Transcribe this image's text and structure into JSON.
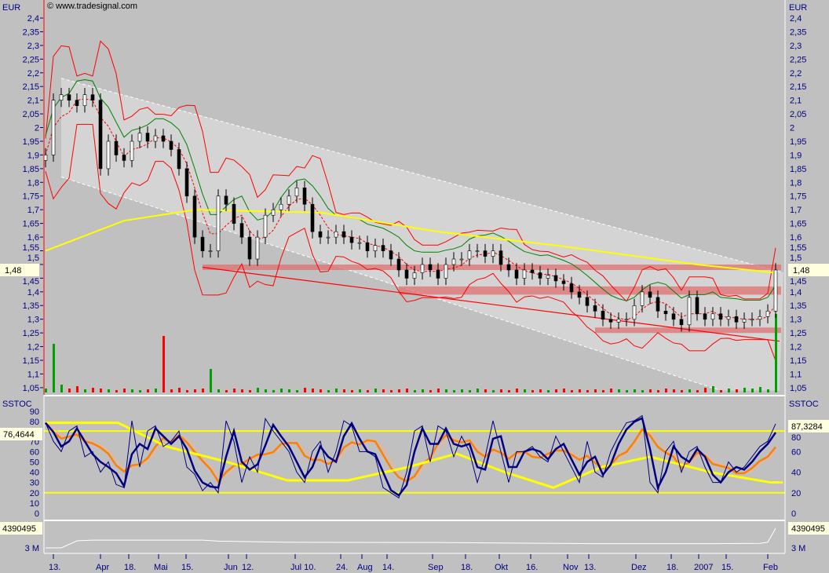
{
  "header": {
    "currency": "EUR",
    "copyright": "© www.tradesignal.com"
  },
  "colors": {
    "background": "#c0c0c0",
    "axis_text": "#000080",
    "price_line": "#ffff00",
    "band": "#ff0000",
    "stoch_fast": "#000080",
    "stoch_slow": "#ff8000",
    "stoch_long": "#ffff00",
    "volume_up": "#00a000",
    "volume_down": "#ff0000",
    "zone": "#e07070"
  },
  "chart_data": [
    {
      "type": "candlestick",
      "title": "",
      "ylabel": "EUR",
      "ylim": [
        1.03,
        2.43
      ],
      "y_ticks": [
        "2,4",
        "2,35",
        "2,3",
        "2,25",
        "2,2",
        "2,15",
        "2,1",
        "2,05",
        "2",
        "1,95",
        "1,9",
        "1,85",
        "1,8",
        "1,75",
        "1,7",
        "1,65",
        "1,6",
        "1,55",
        "1,5",
        "1,45",
        "1,4",
        "1,35",
        "1,3",
        "1,25",
        "1,2",
        "1,15",
        "1,1",
        "1,05"
      ],
      "x_labels": [
        "13.",
        "Apr",
        "18.",
        "Mai",
        "15.",
        "Jun",
        "12.",
        "Jul 10.",
        "24.",
        "Aug",
        "14.",
        "Sep",
        "18.",
        "Okt",
        "16.",
        "Nov",
        "13.",
        "Dez",
        "18.",
        "2007",
        "15.",
        "Feb"
      ],
      "last_value_label": "1,48",
      "closes": [
        1.9,
        2.1,
        2.12,
        2.1,
        2.08,
        2.12,
        2.1,
        1.85,
        1.95,
        1.9,
        1.88,
        1.95,
        1.98,
        1.95,
        1.97,
        1.95,
        1.92,
        1.85,
        1.75,
        1.6,
        1.55,
        1.55,
        1.75,
        1.72,
        1.65,
        1.6,
        1.52,
        1.6,
        1.68,
        1.7,
        1.72,
        1.75,
        1.78,
        1.72,
        1.62,
        1.6,
        1.6,
        1.62,
        1.6,
        1.58,
        1.58,
        1.55,
        1.57,
        1.55,
        1.52,
        1.48,
        1.45,
        1.47,
        1.5,
        1.48,
        1.45,
        1.5,
        1.52,
        1.52,
        1.55,
        1.55,
        1.53,
        1.55,
        1.5,
        1.48,
        1.45,
        1.48,
        1.47,
        1.45,
        1.46,
        1.44,
        1.43,
        1.4,
        1.38,
        1.35,
        1.33,
        1.3,
        1.29,
        1.3,
        1.3,
        1.35,
        1.4,
        1.38,
        1.33,
        1.32,
        1.3,
        1.28,
        1.38,
        1.32,
        1.3,
        1.32,
        1.3,
        1.31,
        1.29,
        1.3,
        1.3,
        1.31,
        1.33,
        1.48
      ],
      "volume_relative": [
        0.05,
        0.62,
        0.1,
        0.05,
        0.08,
        0.04,
        0.06,
        0.05,
        0.04,
        0.03,
        0.05,
        0.04,
        0.03,
        0.04,
        0.05,
        0.72,
        0.04,
        0.06,
        0.03,
        0.04,
        0.05,
        0.3,
        0.04,
        0.03,
        0.05,
        0.04,
        0.03,
        0.06,
        0.04,
        0.03,
        0.05,
        0.04,
        0.03,
        0.06,
        0.05,
        0.04,
        0.03,
        0.05,
        0.04,
        0.03,
        0.04,
        0.03,
        0.05,
        0.04,
        0.03,
        0.04,
        0.05,
        0.03,
        0.04,
        0.03,
        0.05,
        0.04,
        0.03,
        0.04,
        0.03,
        0.05,
        0.04,
        0.03,
        0.04,
        0.03,
        0.05,
        0.04,
        0.03,
        0.04,
        0.03,
        0.04,
        0.05,
        0.03,
        0.04,
        0.03,
        0.04,
        0.03,
        0.05,
        0.04,
        0.03,
        0.04,
        0.03,
        0.04,
        0.03,
        0.05,
        0.04,
        0.03,
        0.04,
        0.03,
        0.06,
        0.08,
        0.03,
        0.05,
        0.04,
        0.06,
        0.05,
        0.07,
        0.04,
        1.0
      ],
      "moving_average_200": [
        [
          0,
          1.55
        ],
        [
          10,
          1.66
        ],
        [
          19,
          1.7
        ],
        [
          35,
          1.69
        ],
        [
          50,
          1.62
        ],
        [
          65,
          1.57
        ],
        [
          83,
          1.5
        ],
        [
          93,
          1.47
        ]
      ],
      "support_zones": [
        {
          "from": 20,
          "low": 1.48,
          "high": 1.5
        },
        {
          "from": 45,
          "low": 1.39,
          "high": 1.42
        },
        {
          "from": 70,
          "low": 1.25,
          "high": 1.27
        }
      ],
      "trendline": [
        [
          20,
          1.49
        ],
        [
          94,
          1.22
        ]
      ],
      "channel_upper": [
        [
          2,
          2.18
        ],
        [
          94,
          1.47
        ]
      ],
      "channel_lower": [
        [
          2,
          1.82
        ],
        [
          86,
          1.04
        ]
      ]
    },
    {
      "type": "line",
      "title": "SSTOC",
      "ylim": [
        -5,
        98
      ],
      "y_ticks": [
        "90",
        "80",
        "70",
        "60",
        "50",
        "40",
        "30",
        "20",
        "10",
        "0"
      ],
      "right_ticks": [
        "80",
        "60",
        "40",
        "20",
        "0"
      ],
      "levels": [
        20,
        80
      ],
      "left_value_label": "76,4644",
      "right_value_label": "87,3284",
      "fast": [
        88,
        70,
        60,
        80,
        85,
        55,
        60,
        40,
        50,
        28,
        25,
        90,
        45,
        80,
        85,
        65,
        70,
        80,
        45,
        38,
        22,
        30,
        20,
        90,
        70,
        30,
        55,
        40,
        92,
        80,
        70,
        60,
        40,
        30,
        60,
        70,
        40,
        60,
        90,
        85,
        60,
        60,
        55,
        25,
        20,
        15,
        40,
        80,
        85,
        50,
        85,
        80,
        55,
        75,
        60,
        30,
        55,
        90,
        60,
        30,
        60,
        60,
        65,
        55,
        50,
        75,
        60,
        45,
        30,
        70,
        40,
        35,
        60,
        75,
        88,
        90,
        95,
        30,
        20,
        60,
        70,
        40,
        60,
        65,
        45,
        30,
        30,
        50,
        40,
        45,
        55,
        65,
        70,
        87
      ],
      "long": [
        [
          0,
          88
        ],
        [
          12,
          88
        ],
        [
          20,
          65
        ],
        [
          30,
          50
        ],
        [
          40,
          32
        ],
        [
          50,
          32
        ],
        [
          60,
          45
        ],
        [
          68,
          58
        ],
        [
          76,
          40
        ],
        [
          84,
          25
        ],
        [
          92,
          45
        ],
        [
          100,
          55
        ],
        [
          110,
          40
        ],
        [
          120,
          30
        ],
        [
          122,
          30
        ]
      ]
    },
    {
      "type": "line",
      "title": "",
      "y_ticks": [
        "3 M"
      ],
      "last_value_label": "4390495",
      "values_millions": [
        [
          0,
          3.0
        ],
        [
          2,
          3.0
        ],
        [
          4,
          3.5
        ],
        [
          6,
          3.55
        ],
        [
          20,
          3.55
        ],
        [
          22,
          3.48
        ],
        [
          30,
          3.4
        ],
        [
          50,
          3.38
        ],
        [
          70,
          3.3
        ],
        [
          85,
          3.3
        ],
        [
          91,
          3.32
        ],
        [
          92,
          3.4
        ],
        [
          93,
          4.39
        ]
      ]
    }
  ]
}
